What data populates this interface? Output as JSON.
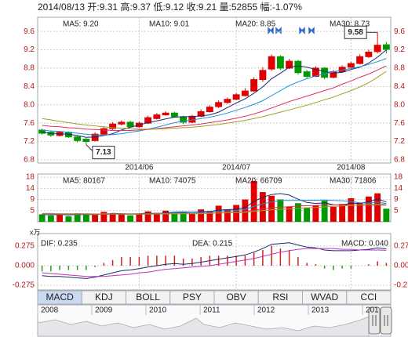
{
  "chart_data": [
    {
      "type": "candlestick",
      "title": "2014/08/13 开:9.31 高:9.37 低:9.12 收:9.21 量:52855 幅:-1.07%",
      "categories": [
        null,
        null,
        null,
        null,
        null,
        null,
        null,
        null,
        null,
        null,
        null,
        "2014/06",
        null,
        null,
        null,
        null,
        null,
        null,
        null,
        null,
        null,
        null,
        "2014/07",
        null,
        null,
        null,
        null,
        null,
        null,
        null,
        null,
        null,
        null,
        null,
        null,
        "2014/08",
        null,
        null,
        null,
        null
      ],
      "open": [
        7.45,
        7.4,
        7.33,
        7.4,
        7.3,
        7.25,
        7.22,
        7.36,
        7.48,
        7.58,
        7.62,
        7.52,
        7.6,
        7.7,
        7.78,
        7.82,
        7.74,
        7.62,
        7.75,
        7.85,
        7.96,
        8.05,
        8.12,
        8.2,
        8.3,
        8.55,
        8.78,
        9.05,
        8.8,
        8.95,
        8.72,
        8.62,
        8.8,
        8.6,
        8.72,
        8.82,
        8.9,
        9.05,
        9.16,
        9.31
      ],
      "high": [
        7.48,
        7.44,
        7.43,
        7.42,
        7.32,
        7.28,
        7.4,
        7.52,
        7.62,
        7.66,
        7.65,
        7.63,
        7.76,
        7.82,
        7.86,
        7.85,
        7.76,
        7.78,
        7.9,
        7.99,
        8.1,
        8.16,
        8.26,
        8.36,
        8.6,
        8.82,
        9.1,
        9.08,
        9.0,
        8.98,
        8.76,
        8.84,
        8.82,
        8.76,
        8.86,
        8.94,
        9.1,
        9.2,
        9.58,
        9.37
      ],
      "low": [
        7.35,
        7.3,
        7.31,
        7.28,
        7.18,
        7.13,
        7.2,
        7.34,
        7.45,
        7.55,
        7.5,
        7.5,
        7.58,
        7.68,
        7.76,
        7.72,
        7.58,
        7.6,
        7.73,
        7.83,
        7.93,
        8.02,
        8.1,
        8.18,
        8.28,
        8.5,
        8.74,
        8.76,
        8.78,
        8.66,
        8.58,
        8.6,
        8.56,
        8.58,
        8.7,
        8.8,
        8.88,
        9.02,
        9.12,
        9.12
      ],
      "close": [
        7.38,
        7.34,
        7.4,
        7.3,
        7.22,
        7.2,
        7.36,
        7.48,
        7.58,
        7.62,
        7.52,
        7.6,
        7.72,
        7.78,
        7.82,
        7.74,
        7.62,
        7.75,
        7.85,
        7.95,
        8.05,
        8.12,
        8.22,
        8.3,
        8.55,
        8.75,
        9.05,
        8.8,
        8.95,
        8.7,
        8.62,
        8.8,
        8.6,
        8.72,
        8.82,
        8.9,
        9.05,
        9.15,
        9.3,
        9.21
      ],
      "up_color": "#e00000",
      "down_color": "#009a00",
      "series": [
        {
          "name": "MA5: 9.20",
          "color": "#1a2a6c",
          "values": [
            7.4,
            7.38,
            7.37,
            7.36,
            7.33,
            7.29,
            7.3,
            7.33,
            7.37,
            7.45,
            7.51,
            7.56,
            7.61,
            7.65,
            7.69,
            7.73,
            7.74,
            7.74,
            7.76,
            7.78,
            7.84,
            7.94,
            8.04,
            8.13,
            8.25,
            8.39,
            8.57,
            8.69,
            8.82,
            8.85,
            8.82,
            8.77,
            8.73,
            8.69,
            8.71,
            8.77,
            8.82,
            8.91,
            9.04,
            9.2
          ]
        },
        {
          "name": "MA10: 9.01",
          "color": "#1e90d8",
          "values": [
            7.45,
            7.43,
            7.42,
            7.4,
            7.38,
            7.36,
            7.34,
            7.34,
            7.35,
            7.37,
            7.4,
            7.43,
            7.47,
            7.51,
            7.56,
            7.61,
            7.64,
            7.67,
            7.7,
            7.73,
            7.77,
            7.82,
            7.88,
            7.94,
            8.01,
            8.09,
            8.2,
            8.31,
            8.42,
            8.5,
            8.57,
            8.63,
            8.67,
            8.72,
            8.76,
            8.79,
            8.83,
            8.88,
            8.94,
            9.01
          ]
        },
        {
          "name": "MA20: 8.85",
          "color": "#e0306a",
          "values": [
            7.55,
            7.53,
            7.52,
            7.5,
            7.49,
            7.47,
            7.46,
            7.45,
            7.44,
            7.44,
            7.44,
            7.45,
            7.46,
            7.48,
            7.5,
            7.52,
            7.54,
            7.56,
            7.58,
            7.61,
            7.64,
            7.67,
            7.71,
            7.75,
            7.8,
            7.86,
            7.93,
            8.0,
            8.07,
            8.13,
            8.19,
            8.25,
            8.31,
            8.37,
            8.45,
            8.52,
            8.6,
            8.67,
            8.76,
            8.85
          ]
        },
        {
          "name": "MA30: 8.73",
          "color": "#a0a020",
          "values": [
            7.7,
            7.67,
            7.64,
            7.61,
            7.58,
            7.56,
            7.54,
            7.52,
            7.5,
            7.49,
            7.48,
            7.47,
            7.47,
            7.47,
            7.48,
            7.49,
            7.5,
            7.51,
            7.53,
            7.55,
            7.57,
            7.6,
            7.63,
            7.66,
            7.7,
            7.74,
            7.79,
            7.84,
            7.89,
            7.94,
            7.99,
            8.05,
            8.11,
            8.17,
            8.24,
            8.31,
            8.39,
            8.48,
            8.6,
            8.73
          ]
        }
      ],
      "ylim": [
        6.73,
        9.91
      ],
      "yticks": [
        6.8,
        7.2,
        7.6,
        {
          "value": 8,
          "label": "8.0"
        },
        8.4,
        8.8,
        9.2,
        9.6
      ],
      "annotations": [
        "9.58",
        "7.13"
      ],
      "grid": true
    },
    {
      "type": "volume",
      "unit_label": "x万",
      "values": [
        3.0,
        2.5,
        3.2,
        2.2,
        3.5,
        3.0,
        2.8,
        4.0,
        3.5,
        3.0,
        2.6,
        3.2,
        4.2,
        3.6,
        4.5,
        3.8,
        4.0,
        3.4,
        5.0,
        4.4,
        6.5,
        5.0,
        6.8,
        9.0,
        16.5,
        12.0,
        10.5,
        9.0,
        6.2,
        7.5,
        5.8,
        6.5,
        8.5,
        6.0,
        7.2,
        9.5,
        7.8,
        10.2,
        11.5,
        5.29
      ],
      "series": [
        {
          "name": "MA5: 80167",
          "color": "#1a2a6c",
          "values": [
            3.0,
            2.8,
            2.9,
            2.7,
            2.9,
            2.9,
            2.9,
            3.1,
            3.4,
            3.3,
            3.2,
            3.3,
            3.5,
            3.3,
            3.6,
            3.9,
            4.0,
            3.9,
            4.1,
            4.1,
            4.7,
            4.9,
            5.1,
            5.7,
            8.2,
            9.9,
            11.0,
            11.4,
            10.8,
            9.1,
            7.8,
            7.4,
            7.7,
            6.9,
            6.8,
            7.5,
            7.4,
            8.1,
            9.2,
            8.02
          ]
        },
        {
          "name": "MA10: 74075",
          "color": "#1e90d8",
          "values": [
            3.0,
            2.9,
            2.9,
            2.8,
            2.9,
            2.9,
            2.9,
            3.0,
            3.1,
            3.1,
            3.1,
            3.1,
            3.2,
            3.2,
            3.4,
            3.6,
            3.7,
            3.7,
            3.8,
            4.0,
            4.3,
            4.4,
            4.6,
            5.0,
            6.2,
            7.3,
            8.0,
            8.6,
            8.6,
            8.6,
            8.7,
            8.7,
            8.8,
            8.6,
            8.5,
            8.2,
            7.7,
            7.5,
            7.9,
            7.41
          ]
        },
        {
          "name": "MA20: 66709",
          "color": "#e0306a",
          "values": [
            3.2,
            3.2,
            3.1,
            3.1,
            3.1,
            3.1,
            3.0,
            3.0,
            3.1,
            3.1,
            3.1,
            3.1,
            3.1,
            3.1,
            3.2,
            3.2,
            3.3,
            3.3,
            3.4,
            3.5,
            3.6,
            3.7,
            3.9,
            4.1,
            4.7,
            5.2,
            5.6,
            5.9,
            6.1,
            6.4,
            6.5,
            6.6,
            6.7,
            6.8,
            6.8,
            6.8,
            6.7,
            6.7,
            6.7,
            6.67
          ]
        },
        {
          "name": "MA30: 71806",
          "color": "#a0a020",
          "values": [
            3.4,
            3.4,
            3.3,
            3.3,
            3.3,
            3.3,
            3.2,
            3.2,
            3.2,
            3.2,
            3.2,
            3.2,
            3.2,
            3.2,
            3.2,
            3.3,
            3.3,
            3.3,
            3.3,
            3.4,
            3.5,
            3.6,
            3.7,
            3.8,
            4.2,
            4.5,
            4.8,
            5.0,
            5.2,
            5.4,
            5.6,
            5.8,
            6.0,
            6.2,
            6.4,
            6.6,
            6.8,
            7.0,
            7.1,
            7.18
          ]
        }
      ],
      "ylim": [
        0,
        19.3
      ],
      "yticks": [
        {
          "value": 4.5,
          "label": "5"
        },
        9,
        {
          "value": 13.5,
          "label": "14"
        },
        18
      ]
    },
    {
      "type": "macd",
      "name": "MACD: 0.040",
      "values": [
        -0.08,
        -0.08,
        -0.06,
        -0.06,
        -0.06,
        -0.06,
        -0.02,
        0.04,
        0.08,
        0.12,
        0.12,
        0.12,
        0.14,
        0.14,
        0.14,
        0.14,
        0.1,
        0.1,
        0.12,
        0.14,
        0.14,
        0.14,
        0.14,
        0.14,
        0.18,
        0.22,
        0.28,
        0.24,
        0.22,
        0.12,
        0.04,
        0.02,
        -0.04,
        -0.06,
        -0.04,
        -0.04,
        0.0,
        0.02,
        0.06,
        0.04
      ],
      "up_color": "#d02020",
      "down_color": "#20a020",
      "series": [
        {
          "name": "DIF: 0.235",
          "color": "#1a2a6c",
          "values": [
            -0.14,
            -0.15,
            -0.15,
            -0.16,
            -0.17,
            -0.18,
            -0.16,
            -0.13,
            -0.1,
            -0.07,
            -0.06,
            -0.04,
            -0.02,
            0.0,
            0.02,
            0.03,
            0.02,
            0.03,
            0.05,
            0.07,
            0.09,
            0.11,
            0.13,
            0.15,
            0.19,
            0.24,
            0.3,
            0.31,
            0.32,
            0.29,
            0.26,
            0.25,
            0.22,
            0.21,
            0.21,
            0.21,
            0.22,
            0.23,
            0.25,
            0.235
          ]
        },
        {
          "name": "DEA: 0.215",
          "color": "#c030c0",
          "values": [
            -0.1,
            -0.11,
            -0.12,
            -0.13,
            -0.14,
            -0.15,
            -0.15,
            -0.15,
            -0.14,
            -0.13,
            -0.12,
            -0.1,
            -0.09,
            -0.07,
            -0.05,
            -0.04,
            -0.03,
            -0.02,
            -0.01,
            0.0,
            0.02,
            0.04,
            0.06,
            0.08,
            0.1,
            0.13,
            0.16,
            0.19,
            0.21,
            0.23,
            0.24,
            0.24,
            0.24,
            0.24,
            0.23,
            0.23,
            0.22,
            0.22,
            0.22,
            0.215
          ]
        }
      ],
      "ylim": [
        -0.34,
        0.45
      ],
      "yticks": [
        0.275,
        {
          "value": 0,
          "label": "0.000"
        },
        -0.275
      ]
    }
  ],
  "tabs": [
    "MACD",
    "KDJ",
    "BOLL",
    "PSY",
    "OBV",
    "RSI",
    "WVAD",
    "CCI"
  ],
  "navigator": {
    "years": [
      "2008",
      "2009",
      "2010",
      "2011",
      "2012",
      "2013",
      "201"
    ]
  }
}
